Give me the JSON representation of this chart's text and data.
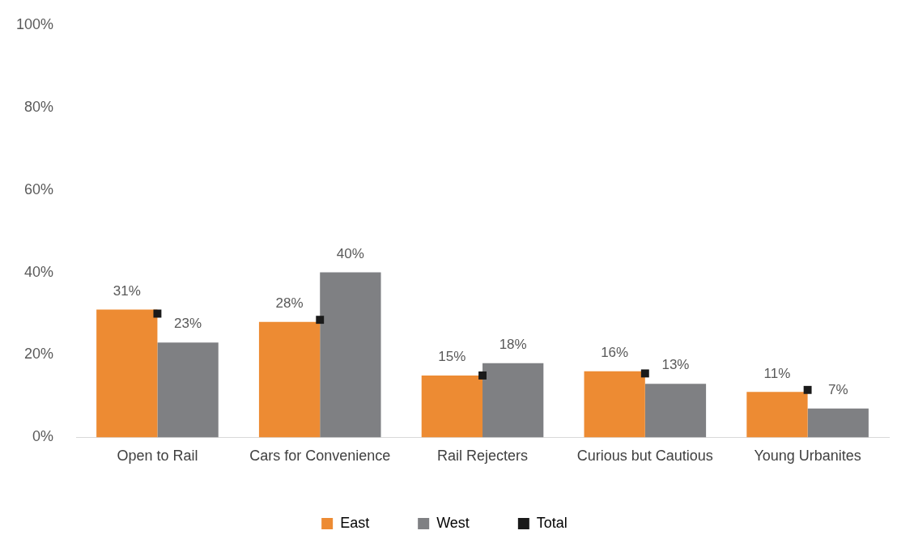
{
  "chart_data": {
    "type": "bar",
    "categories": [
      "Open to Rail",
      "Cars for Convenience",
      "Rail Rejecters",
      "Curious but Cautious",
      "Young Urbanites"
    ],
    "series": [
      {
        "name": "East",
        "color": "#ed8b33",
        "values": [
          31,
          28,
          15,
          16,
          11
        ],
        "value_labels": [
          "31%",
          "28%",
          "15%",
          "16%",
          "11%"
        ]
      },
      {
        "name": "West",
        "color": "#7f8083",
        "values": [
          23,
          40,
          18,
          13,
          7
        ],
        "value_labels": [
          "23%",
          "40%",
          "18%",
          "13%",
          "7%"
        ]
      },
      {
        "name": "Total",
        "type": "scatter",
        "color": "#1a1a1a",
        "x": [
          "Open to Rail",
          "Cars for Convenience",
          "Rail Rejecters",
          "Curious but Cautious",
          "Young Urbanites"
        ],
        "values": [
          30,
          28.5,
          15,
          15.5,
          11.5
        ]
      }
    ],
    "ylim": [
      0,
      100
    ],
    "yticks": [
      {
        "value": 0,
        "label": "0%"
      },
      {
        "value": 20,
        "label": "20%"
      },
      {
        "value": 40,
        "label": "40%"
      },
      {
        "value": 60,
        "label": "60%"
      },
      {
        "value": 80,
        "label": "80%"
      },
      {
        "value": 100,
        "label": "100%"
      }
    ],
    "grid": false,
    "legend": "bottom",
    "marker": "square"
  }
}
